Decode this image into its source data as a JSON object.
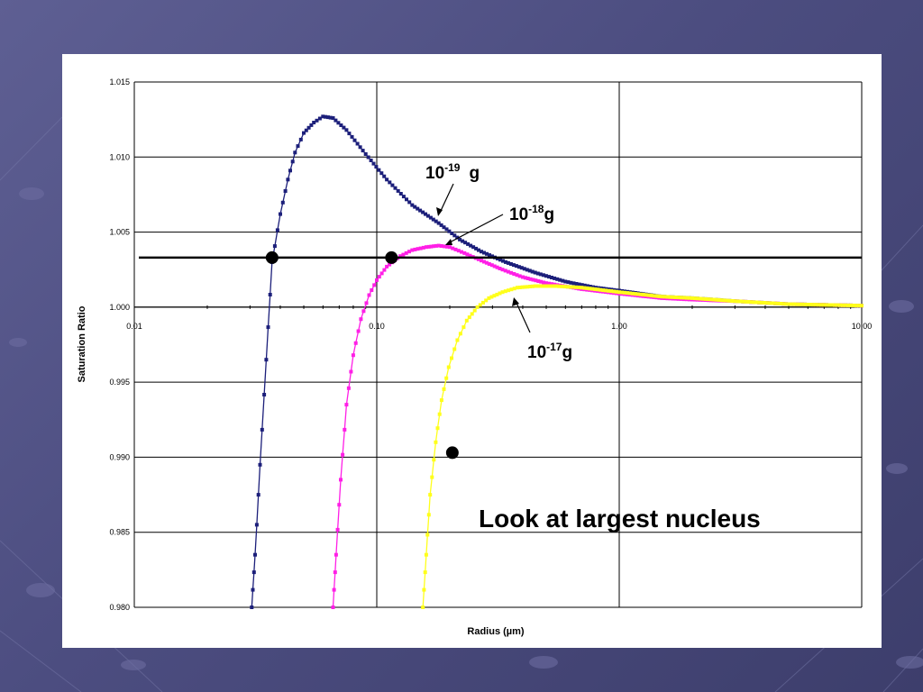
{
  "colors": {
    "background": "#4f5083",
    "panel": "#ffffff",
    "series_1e-19": "#1c1f7a",
    "series_1e-18": "#ff1fe6",
    "series_1e-17": "#ffff1a",
    "reference_line": "#000000"
  },
  "chart_data": {
    "type": "line",
    "title": "",
    "xlabel": "Radius (µm)",
    "ylabel": "Saturation Ratio",
    "x_scale": "log",
    "xlim": [
      0.01,
      10.0
    ],
    "ylim": [
      0.98,
      1.015
    ],
    "x_ticks": [
      "0.01",
      "0.10",
      "1.00",
      "10.00"
    ],
    "y_ticks": [
      "1.015",
      "1.010",
      "1.005",
      "1.000",
      "0.995",
      "0.990",
      "0.985",
      "0.980"
    ],
    "grid": true,
    "reference_line": {
      "y": 1.0033
    },
    "series": [
      {
        "name": "10-19 g",
        "color": "#1c1f7a",
        "x": [
          0.0305,
          0.0315,
          0.033,
          0.035,
          0.037,
          0.04,
          0.043,
          0.046,
          0.05,
          0.055,
          0.06,
          0.066,
          0.075,
          0.09,
          0.11,
          0.14,
          0.18,
          0.22,
          0.27,
          0.34,
          0.45,
          0.6,
          0.8,
          1.0,
          1.5,
          2.0,
          3.0,
          5.0,
          10.0
        ],
        "values": [
          0.98,
          0.9835,
          0.9895,
          0.9965,
          1.003,
          1.0062,
          1.0085,
          1.0103,
          1.0116,
          1.0123,
          1.0127,
          1.0126,
          1.0118,
          1.0102,
          1.0085,
          1.0068,
          1.0056,
          1.0045,
          1.0037,
          1.003,
          1.0023,
          1.0017,
          1.0013,
          1.0011,
          1.0007,
          1.0006,
          1.0004,
          1.0002,
          1.0001
        ]
      },
      {
        "name": "10-18g",
        "color": "#ff1fe6",
        "x": [
          0.066,
          0.068,
          0.071,
          0.075,
          0.08,
          0.086,
          0.093,
          0.1,
          0.11,
          0.125,
          0.14,
          0.16,
          0.18,
          0.2,
          0.23,
          0.27,
          0.33,
          0.4,
          0.5,
          0.7,
          1.0,
          1.5,
          2.0,
          3.0,
          5.0,
          10.0
        ],
        "values": [
          0.98,
          0.9835,
          0.9885,
          0.9935,
          0.9968,
          0.9992,
          1.0008,
          1.0018,
          1.0027,
          1.0034,
          1.0038,
          1.004,
          1.0041,
          1.004,
          1.0036,
          1.0031,
          1.0025,
          1.002,
          1.0016,
          1.0012,
          1.0009,
          1.0006,
          1.0005,
          1.0004,
          1.0002,
          1.0001
        ]
      },
      {
        "name": "10-17g",
        "color": "#ffff1a",
        "x": [
          0.155,
          0.16,
          0.166,
          0.175,
          0.185,
          0.198,
          0.215,
          0.235,
          0.26,
          0.29,
          0.33,
          0.38,
          0.45,
          0.55,
          0.7,
          1.0,
          1.5,
          2.0,
          3.0,
          5.0,
          10.0
        ],
        "values": [
          0.98,
          0.9835,
          0.9875,
          0.991,
          0.9938,
          0.996,
          0.9978,
          0.9991,
          1.0,
          1.0006,
          1.001,
          1.0013,
          1.0014,
          1.0014,
          1.0013,
          1.001,
          1.0007,
          1.0006,
          1.0004,
          1.0002,
          1.0001
        ]
      }
    ],
    "markers": [
      {
        "x": 0.037,
        "y": 1.0033
      },
      {
        "x": 0.115,
        "y": 1.0033
      },
      {
        "x": 0.205,
        "y": 0.9903
      }
    ],
    "annotations": {
      "a19": {
        "base": "10",
        "exp": "-19",
        "unit": "g"
      },
      "a18": {
        "base": "10",
        "exp": "-18",
        "unit": "g"
      },
      "a17": {
        "base": "10",
        "exp": "-17",
        "unit": "g"
      },
      "note": "Look at largest nucleus"
    }
  }
}
